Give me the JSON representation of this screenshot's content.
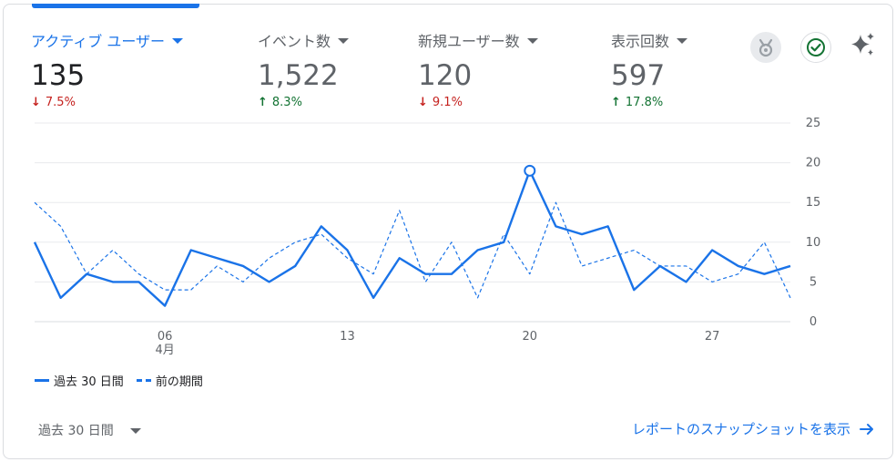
{
  "metrics": [
    {
      "name": "アクティブ ユーザー",
      "value": "135",
      "change": "7.5%",
      "direction": "down",
      "selected": true
    },
    {
      "name": "イベント数",
      "value": "1,522",
      "change": "8.3%",
      "direction": "up",
      "selected": false
    },
    {
      "name": "新規ユーザー数",
      "value": "120",
      "change": "9.1%",
      "direction": "down",
      "selected": false
    },
    {
      "name": "表示回数",
      "value": "597",
      "change": "17.8%",
      "direction": "up",
      "selected": false
    }
  ],
  "icons": {
    "badge": "medal-icon",
    "check": "check-circle-icon",
    "insights": "sparkle-icon"
  },
  "colors": {
    "accent": "#1a73e8",
    "down": "#c5221f",
    "up": "#137333"
  },
  "chart_data": {
    "type": "line",
    "x": [
      1,
      2,
      3,
      4,
      5,
      6,
      7,
      8,
      9,
      10,
      11,
      12,
      13,
      14,
      15,
      16,
      17,
      18,
      19,
      20,
      21,
      22,
      23,
      24,
      25,
      26,
      27,
      28,
      29,
      30
    ],
    "x_ticks": [
      {
        "x": 6,
        "label": "06",
        "sublabel": "4月"
      },
      {
        "x": 13,
        "label": "13"
      },
      {
        "x": 20,
        "label": "20"
      },
      {
        "x": 27,
        "label": "27"
      }
    ],
    "y_ticks": [
      0,
      5,
      10,
      15,
      20,
      25
    ],
    "ylim": [
      0,
      25
    ],
    "series": [
      {
        "name": "過去 30 日間",
        "style": "solid",
        "values": [
          10,
          3,
          6,
          5,
          5,
          2,
          9,
          8,
          7,
          5,
          7,
          12,
          9,
          3,
          8,
          6,
          6,
          9,
          10,
          19,
          12,
          11,
          12,
          4,
          7,
          5,
          9,
          7,
          6,
          7
        ]
      },
      {
        "name": "前の期間",
        "style": "dashed",
        "values": [
          15,
          12,
          6,
          9,
          6,
          4,
          4,
          7,
          5,
          8,
          10,
          11,
          8,
          6,
          14,
          5,
          10,
          3,
          11,
          6,
          15,
          7,
          8,
          9,
          7,
          7,
          5,
          6,
          10,
          3
        ]
      }
    ],
    "highlight_point": {
      "series": 0,
      "x": 20,
      "y": 19
    }
  },
  "footer": {
    "period_label": "過去 30 日間",
    "snapshot_link": "レポートのスナップショットを表示"
  }
}
